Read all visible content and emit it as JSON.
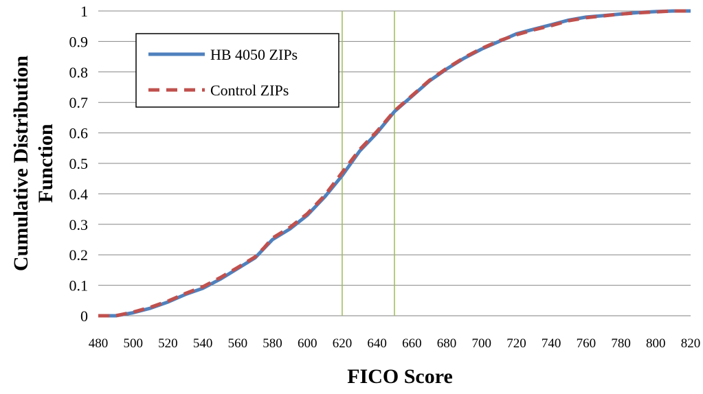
{
  "chart_data": {
    "type": "line",
    "title": "",
    "xlabel": "FICO Score",
    "ylabel": "Cumulative Distribution Function",
    "xlim": [
      480,
      820
    ],
    "ylim": [
      0,
      1
    ],
    "x_ticks": [
      "480",
      "500",
      "520",
      "540",
      "560",
      "580",
      "600",
      "620",
      "640",
      "660",
      "680",
      "700",
      "720",
      "740",
      "760",
      "780",
      "800",
      "820"
    ],
    "y_ticks": [
      "0",
      "0.1",
      "0.2",
      "0.3",
      "0.4",
      "0.5",
      "0.6",
      "0.7",
      "0.8",
      "0.9",
      "1"
    ],
    "grid": "horizontal",
    "legend_position": "top-left",
    "reference_lines_x": [
      620,
      650
    ],
    "reference_line_color": "#9BBB59",
    "series": [
      {
        "name": "HB 4050 ZIPs",
        "color": "#4F81BD",
        "style": "solid",
        "x": [
          480,
          490,
          500,
          510,
          520,
          530,
          540,
          550,
          560,
          570,
          575,
          580,
          590,
          600,
          610,
          620,
          630,
          640,
          650,
          660,
          670,
          680,
          690,
          700,
          710,
          720,
          730,
          740,
          750,
          760,
          770,
          780,
          790,
          800,
          810,
          820
        ],
        "y": [
          0,
          0,
          0.01,
          0.025,
          0.045,
          0.07,
          0.09,
          0.12,
          0.155,
          0.19,
          0.22,
          0.25,
          0.285,
          0.33,
          0.39,
          0.46,
          0.54,
          0.6,
          0.67,
          0.72,
          0.77,
          0.81,
          0.845,
          0.875,
          0.9,
          0.925,
          0.94,
          0.955,
          0.97,
          0.98,
          0.985,
          0.99,
          0.995,
          0.998,
          1,
          1
        ]
      },
      {
        "name": "Control ZIPs",
        "color": "#C0504D",
        "style": "dashed",
        "x": [
          480,
          490,
          500,
          510,
          520,
          530,
          540,
          550,
          560,
          570,
          575,
          580,
          590,
          600,
          610,
          620,
          630,
          640,
          650,
          660,
          670,
          680,
          690,
          700,
          710,
          720,
          730,
          740,
          750,
          760,
          770,
          780,
          790,
          800,
          810,
          820
        ],
        "y": [
          0,
          0,
          0.012,
          0.028,
          0.048,
          0.073,
          0.095,
          0.125,
          0.158,
          0.193,
          0.222,
          0.255,
          0.29,
          0.335,
          0.395,
          0.47,
          0.545,
          0.605,
          0.672,
          0.722,
          0.772,
          0.812,
          0.847,
          0.877,
          0.902,
          0.922,
          0.938,
          0.952,
          0.968,
          0.978,
          0.984,
          0.99,
          0.994,
          0.997,
          1,
          1
        ]
      }
    ]
  }
}
